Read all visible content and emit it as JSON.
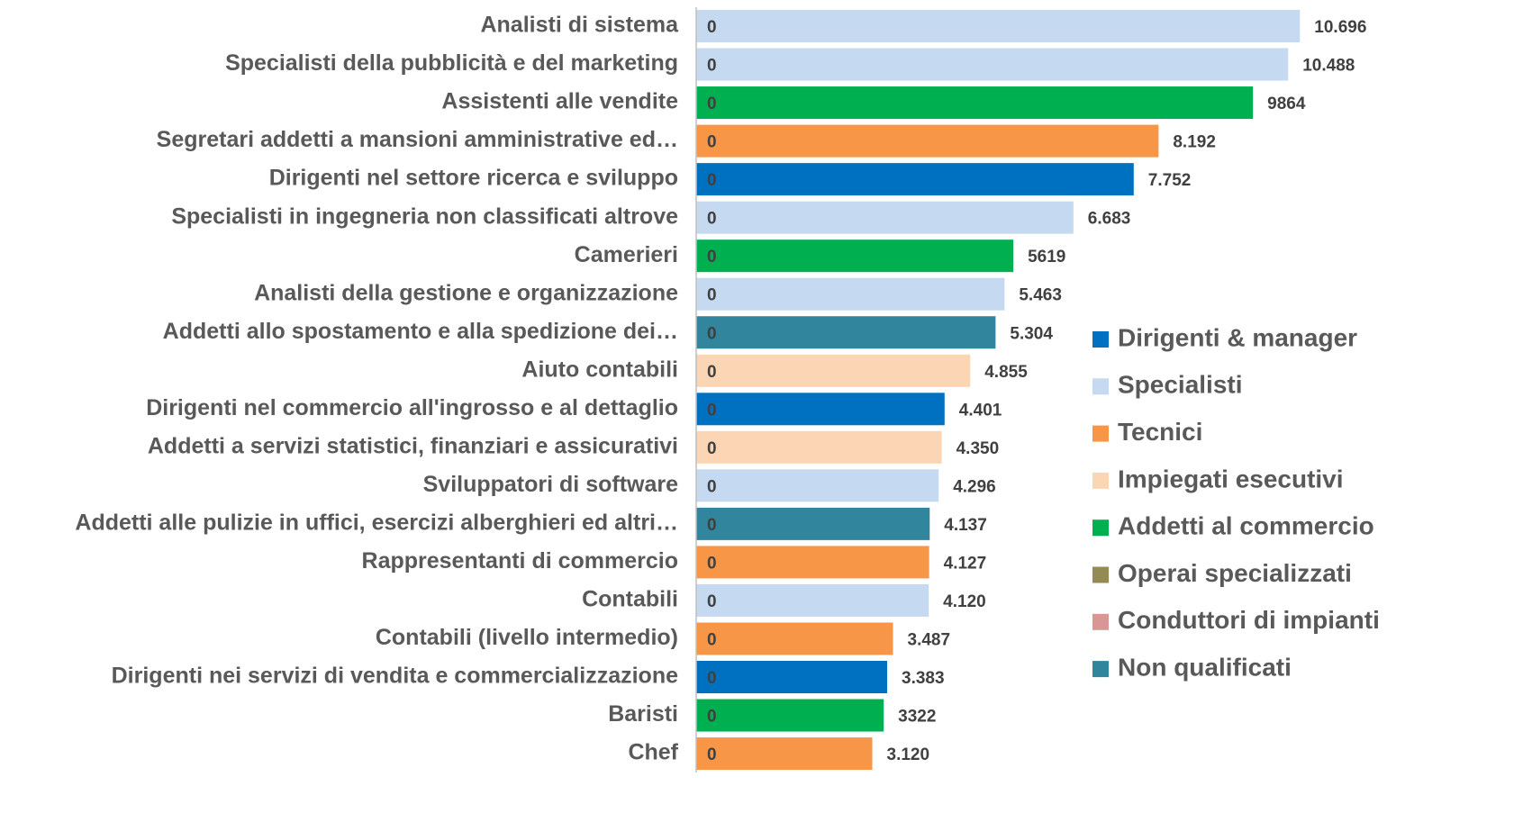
{
  "chart_data": {
    "type": "bar",
    "orientation": "horizontal",
    "stacked": true,
    "categories": [
      "Analisti di sistema",
      "Specialisti della pubblicità e del marketing",
      "Assistenti alle vendite",
      "Segretari addetti a mansioni amministrative ed…",
      "Dirigenti nel settore ricerca e sviluppo",
      "Specialisti in ingegneria non classificati altrove",
      "Camerieri",
      "Analisti della gestione e organizzazione",
      "Addetti allo spostamento e alla spedizione dei…",
      "Aiuto contabili",
      "Dirigenti nel commercio all'ingrosso e al dettaglio",
      "Addetti a servizi statistici, finanziari e assicurativi",
      "Sviluppatori di software",
      "Addetti alle pulizie in uffici, esercizi alberghieri ed altri…",
      "Rappresentanti di commercio",
      "Contabili",
      "Contabili (livello intermedio)",
      "Dirigenti nei servizi di vendita e commercializzazione",
      "Baristi",
      "Chef"
    ],
    "base_values": [
      0,
      0,
      0,
      0,
      0,
      0,
      0,
      0,
      0,
      0,
      0,
      0,
      0,
      0,
      0,
      0,
      0,
      0,
      0,
      0
    ],
    "series": [
      {
        "name": "Dirigenti & manager",
        "color": "#0070c0",
        "values": [
          null,
          null,
          null,
          null,
          7752,
          null,
          null,
          null,
          null,
          null,
          4401,
          null,
          null,
          null,
          null,
          null,
          null,
          3383,
          null,
          null
        ],
        "value_labels": [
          null,
          null,
          null,
          null,
          "7.752",
          null,
          null,
          null,
          null,
          null,
          "4.401",
          null,
          null,
          null,
          null,
          null,
          null,
          "3.383",
          null,
          null
        ]
      },
      {
        "name": "Specialisti",
        "color": "#c5d9f1",
        "values": [
          10696,
          10488,
          null,
          null,
          null,
          6683,
          null,
          5463,
          null,
          null,
          null,
          null,
          4296,
          null,
          null,
          4120,
          null,
          null,
          null,
          null
        ],
        "value_labels": [
          "10.696",
          "10.488",
          null,
          null,
          null,
          "6.683",
          null,
          "5.463",
          null,
          null,
          null,
          null,
          "4.296",
          null,
          null,
          "4.120",
          null,
          null,
          null,
          null
        ]
      },
      {
        "name": "Tecnici",
        "color": "#f79646",
        "values": [
          null,
          null,
          null,
          8192,
          null,
          null,
          null,
          null,
          null,
          null,
          null,
          null,
          null,
          null,
          4127,
          null,
          3487,
          null,
          null,
          3120
        ],
        "value_labels": [
          null,
          null,
          null,
          "8.192",
          null,
          null,
          null,
          null,
          null,
          null,
          null,
          null,
          null,
          null,
          "4.127",
          null,
          "3.487",
          null,
          null,
          "3.120"
        ]
      },
      {
        "name": "Impiegati esecutivi",
        "color": "#fcd5b4",
        "values": [
          null,
          null,
          null,
          null,
          null,
          null,
          null,
          null,
          null,
          4855,
          null,
          4350,
          null,
          null,
          null,
          null,
          null,
          null,
          null,
          null
        ],
        "value_labels": [
          null,
          null,
          null,
          null,
          null,
          null,
          null,
          null,
          null,
          "4.855",
          null,
          "4.350",
          null,
          null,
          null,
          null,
          null,
          null,
          null,
          null
        ]
      },
      {
        "name": "Addetti al commercio",
        "color": "#00b050",
        "values": [
          null,
          null,
          9864,
          null,
          null,
          null,
          5619,
          null,
          null,
          null,
          null,
          null,
          null,
          null,
          null,
          null,
          null,
          null,
          3322,
          null
        ],
        "value_labels": [
          null,
          null,
          null,
          null,
          null,
          null,
          null,
          null,
          null,
          null,
          null,
          null,
          null,
          null,
          null,
          null,
          null,
          null,
          null,
          null
        ]
      },
      {
        "name": "Operai specializzati",
        "color": "#948a54",
        "values": [
          null,
          null,
          null,
          null,
          null,
          null,
          null,
          null,
          null,
          null,
          null,
          null,
          null,
          null,
          null,
          null,
          null,
          null,
          null,
          null
        ],
        "value_labels": [
          null,
          null,
          null,
          null,
          null,
          null,
          null,
          null,
          null,
          null,
          null,
          null,
          null,
          null,
          null,
          null,
          null,
          null,
          null,
          null
        ]
      },
      {
        "name": "Conduttori di impianti",
        "color": "#da9694",
        "values": [
          null,
          null,
          null,
          null,
          null,
          null,
          null,
          null,
          null,
          null,
          null,
          null,
          null,
          null,
          null,
          null,
          null,
          null,
          null,
          null
        ],
        "value_labels": [
          null,
          null,
          null,
          null,
          null,
          null,
          null,
          null,
          null,
          null,
          null,
          null,
          null,
          null,
          null,
          null,
          null,
          null,
          null,
          null
        ]
      },
      {
        "name": "Non qualificati",
        "color": "#31859c",
        "values": [
          null,
          null,
          null,
          null,
          null,
          null,
          null,
          null,
          5304,
          null,
          null,
          null,
          null,
          4137,
          null,
          null,
          null,
          null,
          null,
          null
        ],
        "value_labels": [
          null,
          null,
          null,
          null,
          null,
          null,
          null,
          null,
          "5.304",
          null,
          null,
          null,
          null,
          "4.137",
          null,
          null,
          null,
          null,
          null,
          null
        ]
      }
    ],
    "xlim": [
      0,
      12000
    ],
    "legend": "right"
  }
}
